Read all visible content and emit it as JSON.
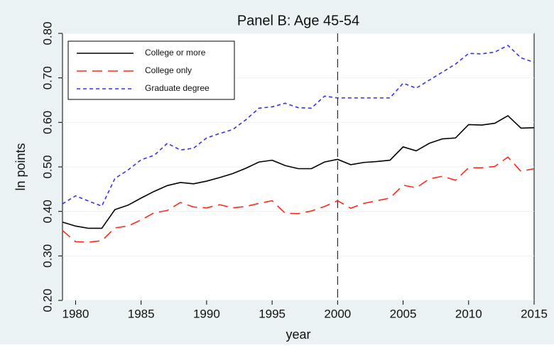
{
  "chart_data": {
    "type": "line",
    "title": "Panel B: Age 45-54",
    "xlabel": "year",
    "ylabel": "ln points",
    "x": [
      1979,
      1980,
      1981,
      1982,
      1983,
      1984,
      1985,
      1986,
      1987,
      1988,
      1989,
      1990,
      1991,
      1992,
      1993,
      1994,
      1995,
      1996,
      1997,
      1998,
      1999,
      2000,
      2001,
      2002,
      2003,
      2004,
      2005,
      2006,
      2007,
      2008,
      2009,
      2010,
      2011,
      2012,
      2013,
      2014,
      2015
    ],
    "series": [
      {
        "name": "College or more",
        "color": "#000000",
        "dash": "solid",
        "values": [
          0.376,
          0.367,
          0.362,
          0.362,
          0.404,
          0.414,
          0.43,
          0.445,
          0.458,
          0.465,
          0.462,
          0.468,
          0.476,
          0.485,
          0.497,
          0.511,
          0.515,
          0.503,
          0.496,
          0.496,
          0.511,
          0.517,
          0.505,
          0.51,
          0.512,
          0.515,
          0.545,
          0.536,
          0.553,
          0.563,
          0.565,
          0.595,
          0.594,
          0.598,
          0.615,
          0.587,
          0.588
        ]
      },
      {
        "name": "College only",
        "color": "#ff2a1a",
        "dash": "long",
        "values": [
          0.357,
          0.332,
          0.331,
          0.334,
          0.363,
          0.367,
          0.381,
          0.397,
          0.402,
          0.42,
          0.41,
          0.408,
          0.415,
          0.408,
          0.411,
          0.418,
          0.424,
          0.396,
          0.395,
          0.401,
          0.411,
          0.424,
          0.407,
          0.418,
          0.424,
          0.43,
          0.459,
          0.453,
          0.473,
          0.479,
          0.47,
          0.498,
          0.498,
          0.501,
          0.522,
          0.49,
          0.496
        ]
      },
      {
        "name": "Graduate degree",
        "color": "#3333ee",
        "dash": "short",
        "values": [
          0.417,
          0.435,
          0.423,
          0.412,
          0.474,
          0.493,
          0.516,
          0.526,
          0.553,
          0.538,
          0.542,
          0.565,
          0.575,
          0.584,
          0.606,
          0.632,
          0.635,
          0.643,
          0.633,
          0.632,
          0.659,
          0.655,
          0.655,
          0.655,
          0.655,
          0.655,
          0.688,
          0.677,
          0.695,
          0.713,
          0.731,
          0.755,
          0.754,
          0.758,
          0.773,
          0.745,
          0.735
        ]
      }
    ],
    "xlim": [
      1979,
      2015
    ],
    "xticks": [
      1980,
      1985,
      1990,
      1995,
      2000,
      2005,
      2010,
      2015
    ],
    "ylim": [
      0.2,
      0.8
    ],
    "yticks": [
      {
        "value": 0.2,
        "label": "0.20"
      },
      {
        "value": 0.3,
        "label": "0.30"
      },
      {
        "value": 0.4,
        "label": "0.40"
      },
      {
        "value": 0.5,
        "label": "0.50"
      },
      {
        "value": 0.6,
        "label": "0.60"
      },
      {
        "value": 0.7,
        "label": "0.70"
      },
      {
        "value": 0.8,
        "label": "0.80"
      }
    ],
    "grid": true,
    "vline": 2000,
    "legend": "top-left"
  }
}
